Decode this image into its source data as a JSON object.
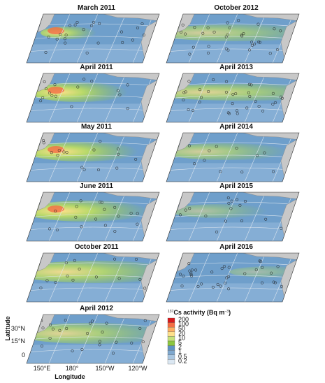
{
  "panels": [
    {
      "title": "March 2011"
    },
    {
      "title": "October 2012"
    },
    {
      "title": "April 2011"
    },
    {
      "title": "April 2013"
    },
    {
      "title": "May 2011"
    },
    {
      "title": "April 2014"
    },
    {
      "title": "June 2011"
    },
    {
      "title": "April 2015"
    },
    {
      "title": "October 2011"
    },
    {
      "title": "April 2016"
    },
    {
      "title": "April 2012"
    }
  ],
  "axes": {
    "y_label": "Latitude",
    "x_label": "Longitude",
    "y_ticks": [
      "30°N",
      "15°N",
      "0"
    ],
    "x_ticks": [
      "150°E",
      "180°",
      "150°W",
      "120°W"
    ]
  },
  "legend": {
    "title_sup": "137",
    "title_main": "Cs activity (Bq m",
    "title_exp": "−3",
    "title_end": ")",
    "levels": [
      {
        "label": "200",
        "color": "#d7191c"
      },
      {
        "label": "100",
        "color": "#f46d43"
      },
      {
        "label": "50",
        "color": "#fdae61"
      },
      {
        "label": "20",
        "color": "#fee08b"
      },
      {
        "label": "10",
        "color": "#c7e27a"
      },
      {
        "label": "5",
        "color": "#8cc63f"
      },
      {
        "label": "2",
        "color": "#5f93c2"
      },
      {
        "label": "1",
        "color": "#7ea8cf"
      },
      {
        "label": "0.5",
        "color": "#a9c6e0"
      },
      {
        "label": "0.2",
        "color": "#dbe7f2"
      }
    ]
  }
}
